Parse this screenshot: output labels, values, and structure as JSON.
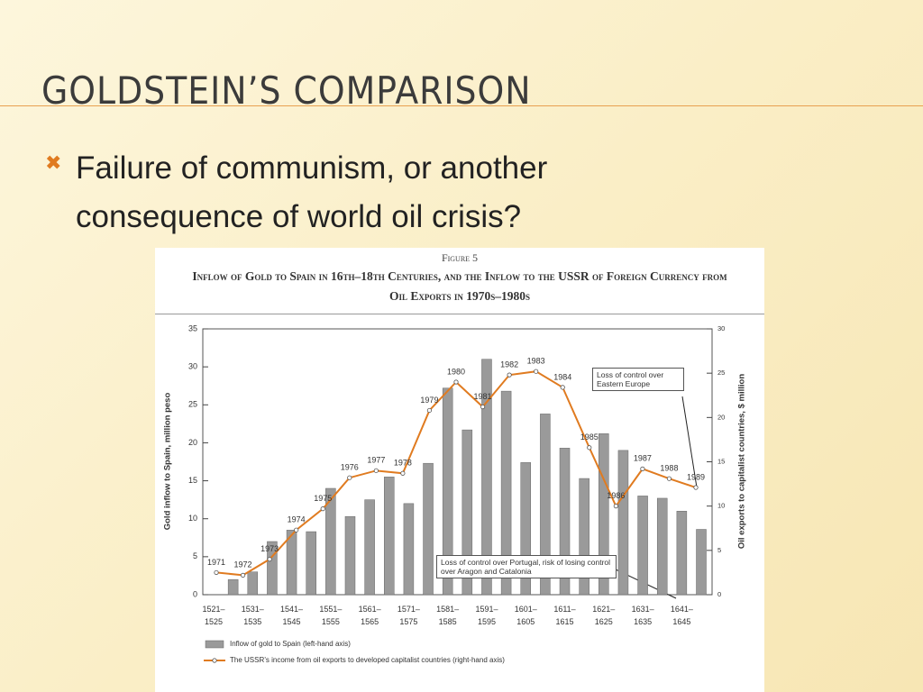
{
  "slide": {
    "title": "GOLDSTEIN’S COMPARISON",
    "bullet": "Failure of communism, or another consequence of world oil crisis?"
  },
  "chart_data": {
    "type": "bar",
    "figure_label": "Figure 5",
    "title": "Inflow of Gold to Spain in 16th–18th Centuries, and the Inflow to the USSR of Foreign Currency from Oil Exports in 1970s–1980s",
    "categories": [
      "1521–1525",
      null,
      "1531–1535",
      null,
      "1541–1545",
      null,
      "1551–1555",
      null,
      "1561–1565",
      null,
      "1571–1575",
      null,
      "1581–1585",
      null,
      "1591–1595",
      null,
      "1601–1605",
      null,
      "1611–1615",
      null,
      "1621–1625",
      null,
      "1631–1635",
      null,
      "1641–1645",
      null
    ],
    "series": [
      {
        "name": "Inflow of gold to Spain (left-hand axis)",
        "color": "#9a9a9a",
        "values": [
          null,
          2,
          3,
          7,
          8.5,
          8.3,
          14,
          10.3,
          12.5,
          15.5,
          12,
          17.3,
          27.2,
          21.7,
          31,
          26.8,
          17.4,
          23.8,
          19.3,
          15.3,
          21.2,
          19,
          13,
          12.7,
          11,
          8.6
        ]
      },
      {
        "name": "The USSR’s income from oil exports to developed capitalist countries (right-hand axis)",
        "color": "#e07b20",
        "type": "line",
        "axis": "y2",
        "x": [
          1971,
          1972,
          1973,
          1974,
          1975,
          1976,
          1977,
          1978,
          1979,
          1980,
          1981,
          1982,
          1983,
          1984,
          1985,
          1986,
          1987,
          1988,
          1989
        ],
        "values": [
          2.5,
          2.2,
          4,
          7.3,
          9.7,
          13.2,
          14,
          13.7,
          20.8,
          24,
          21.2,
          24.8,
          25.2,
          23.4,
          16.6,
          10,
          14.2,
          13.1,
          12.1
        ]
      }
    ],
    "ylabel": "Gold inflow to Spain, million peso",
    "y2label": "Oil exports to capitalist countries, $ million",
    "ylim": [
      0,
      35
    ],
    "yticks": [
      0,
      5,
      10,
      15,
      20,
      25,
      30,
      35
    ],
    "y2lim": [
      0,
      30
    ],
    "y2ticks": [
      0,
      5,
      10,
      15,
      20,
      25,
      30
    ],
    "annotations": [
      "Loss of control over Eastern Europe",
      "Loss of control over Portugal, risk of losing control over Aragon and Catalonia"
    ]
  }
}
